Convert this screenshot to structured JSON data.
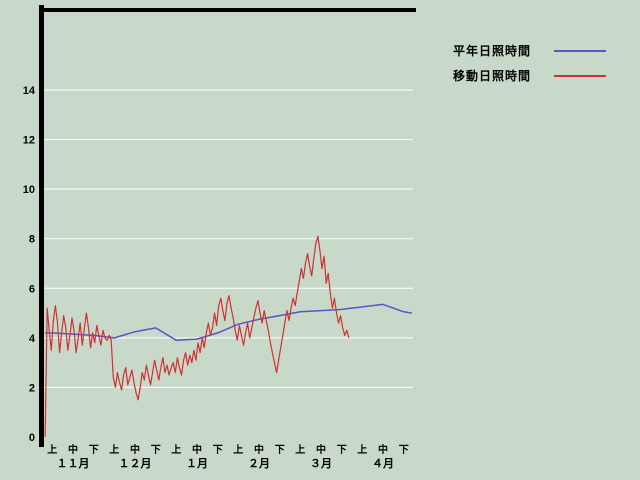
{
  "page": {
    "background_color": "#c9d9c9",
    "axis_color": "#000000",
    "gridline_color": "#ffffff"
  },
  "legend": {
    "items": [
      {
        "label": "平年日照時間",
        "color": "#5555cc"
      },
      {
        "label": "移動日照時間",
        "color": "#cc3333"
      }
    ]
  },
  "chart_data": {
    "type": "line",
    "title": "",
    "xlabel": "",
    "ylabel": "",
    "ylim": [
      0,
      17
    ],
    "y_ticks": [
      0,
      2,
      4,
      6,
      8,
      10,
      12,
      14
    ],
    "grid": "horizontal-white",
    "legend_position": "top-right",
    "x_unit": "ten-day period (旬), Nov through Apr",
    "x_structure": {
      "months": [
        "１１月",
        "１２月",
        "１月",
        "２月",
        "３月",
        "４月"
      ],
      "periods": [
        "上",
        "中",
        "下"
      ],
      "total_periods": 18
    },
    "series": [
      {
        "name": "平年日照時間",
        "color": "#5555cc",
        "width": 1.5,
        "x": [
          0.15,
          0.5,
          1.5,
          2.5,
          3.5,
          4.5,
          5.5,
          6.5,
          7.5,
          8.5,
          9.5,
          10.5,
          11.5,
          12.5,
          13.5,
          14.5,
          15.5,
          16.5,
          17.5,
          17.9
        ],
        "values": [
          4.2,
          4.2,
          4.15,
          4.1,
          4.0,
          4.25,
          4.4,
          3.9,
          3.95,
          4.2,
          4.55,
          4.75,
          4.9,
          5.05,
          5.1,
          5.15,
          5.25,
          5.35,
          5.05,
          5.0
        ]
      },
      {
        "name": "移動日照時間",
        "color": "#cc3333",
        "width": 1.2,
        "x_start": 0.15,
        "x_step": 0.1,
        "values": [
          0.0,
          5.2,
          4.3,
          3.5,
          4.7,
          5.3,
          4.6,
          3.4,
          4.2,
          4.9,
          4.4,
          3.5,
          4.1,
          4.8,
          4.3,
          3.4,
          4.0,
          4.6,
          3.7,
          4.4,
          5.0,
          4.4,
          3.6,
          4.2,
          3.8,
          4.5,
          4.1,
          3.7,
          4.3,
          4.0,
          3.9,
          4.1,
          3.9,
          2.4,
          2.0,
          2.6,
          2.2,
          1.9,
          2.5,
          2.8,
          2.1,
          2.4,
          2.7,
          2.2,
          1.8,
          1.5,
          2.0,
          2.6,
          2.3,
          2.9,
          2.5,
          2.1,
          2.6,
          3.1,
          2.7,
          2.3,
          2.8,
          3.2,
          2.6,
          2.9,
          2.5,
          2.8,
          3.0,
          2.6,
          3.2,
          2.8,
          2.5,
          3.1,
          3.4,
          2.9,
          3.3,
          3.0,
          3.5,
          3.1,
          3.8,
          3.4,
          4.0,
          3.6,
          4.2,
          4.6,
          4.1,
          4.4,
          5.0,
          4.5,
          5.3,
          5.6,
          5.1,
          4.7,
          5.4,
          5.7,
          5.2,
          4.8,
          4.3,
          3.9,
          4.5,
          4.1,
          3.7,
          4.2,
          4.6,
          4.0,
          4.4,
          4.8,
          5.2,
          5.5,
          5.0,
          4.6,
          5.1,
          4.7,
          4.3,
          3.8,
          3.4,
          3.0,
          2.6,
          3.1,
          3.6,
          4.1,
          4.6,
          5.1,
          4.7,
          5.2,
          5.6,
          5.3,
          5.8,
          6.3,
          6.8,
          6.4,
          7.0,
          7.4,
          6.9,
          6.5,
          7.2,
          7.8,
          8.1,
          7.5,
          6.8,
          7.3,
          6.2,
          6.6,
          5.8,
          5.2,
          5.6,
          5.0,
          4.6,
          4.9,
          4.4,
          4.1,
          4.3,
          4.0
        ]
      }
    ]
  }
}
